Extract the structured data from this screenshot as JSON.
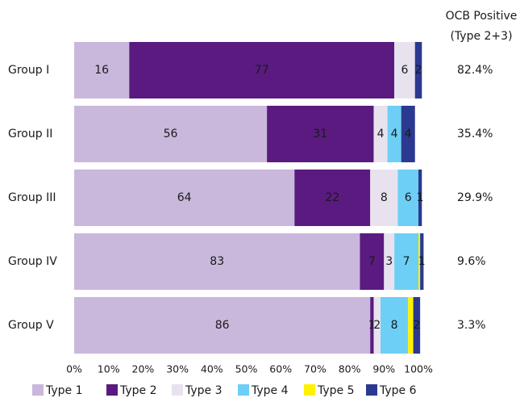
{
  "chart_data": {
    "type": "stacked-bar-horizontal",
    "categories": [
      "Group I",
      "Group II",
      "Group III",
      "Group IV",
      "Group V"
    ],
    "series": [
      {
        "name": "Type 1",
        "color": "#c9b8dc",
        "values": [
          16,
          56,
          64,
          83,
          86
        ]
      },
      {
        "name": "Type 2",
        "color": "#5a1a80",
        "values": [
          77,
          31,
          22,
          7,
          1
        ]
      },
      {
        "name": "Type 3",
        "color": "#e8e2ef",
        "values": [
          6,
          4,
          8,
          3,
          2
        ]
      },
      {
        "name": "Type 4",
        "color": "#6dcff6",
        "values": [
          0,
          4,
          6,
          7,
          8
        ]
      },
      {
        "name": "Type 5",
        "color": "#fff200",
        "values": [
          0,
          0,
          0,
          0.5,
          1.5
        ],
        "value_labels": [
          null,
          null,
          null,
          null,
          null
        ]
      },
      {
        "name": "Type 6",
        "color": "#2b3990",
        "values": [
          2,
          4,
          1,
          1,
          2
        ]
      }
    ],
    "xlim": [
      0,
      100
    ],
    "xticks": [
      {
        "value": 0,
        "label": "0%"
      },
      {
        "value": 10,
        "label": "10%"
      },
      {
        "value": 20,
        "label": "20%"
      },
      {
        "value": 30,
        "label": "30%"
      },
      {
        "value": 40,
        "label": "40%"
      },
      {
        "value": 50,
        "label": "50%"
      },
      {
        "value": 60,
        "label": "60%"
      },
      {
        "value": 70,
        "label": "70%"
      },
      {
        "value": 80,
        "label": "80%"
      },
      {
        "value": 90,
        "label": "90%"
      },
      {
        "value": 100,
        "label": "100%"
      }
    ],
    "side_column": {
      "title": [
        "OCB Positive",
        "(Type 2+3)"
      ],
      "values": [
        82.4,
        35.4,
        29.9,
        9.6,
        3.3
      ],
      "value_labels": [
        "82.4%",
        "35.4%",
        "29.9%",
        "9.6%",
        "3.3%"
      ]
    },
    "legend": "bottom"
  }
}
